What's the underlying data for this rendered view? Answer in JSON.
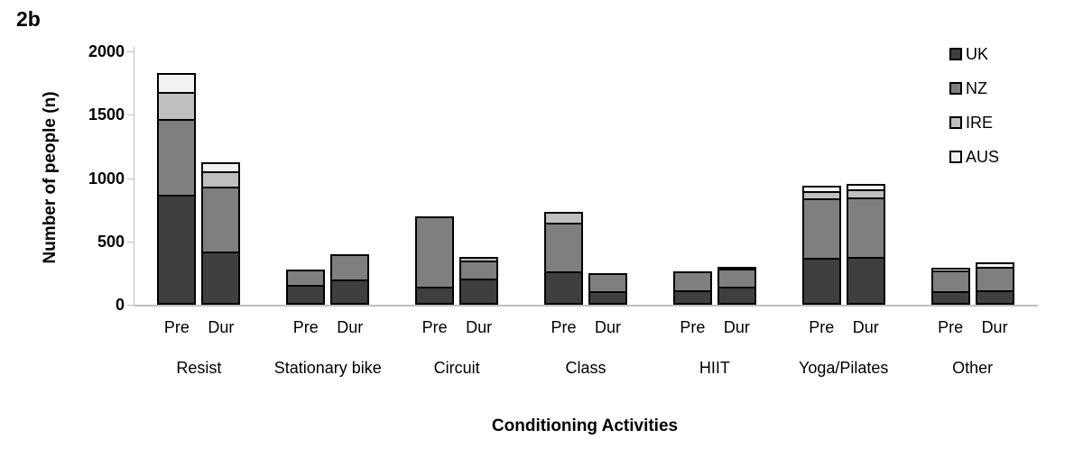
{
  "figure_label": "2b",
  "chart_data": {
    "type": "bar",
    "stacked": true,
    "title": "2b",
    "xlabel": "Conditioning Activities",
    "ylabel": "Number of people (n)",
    "ylim": [
      0,
      2000
    ],
    "yticks": [
      0,
      500,
      1000,
      1500,
      2000
    ],
    "grid": false,
    "axis_color": "#bfbfbf",
    "legend_position": "top-right",
    "bar_pair_labels": [
      "Pre",
      "Dur"
    ],
    "categories": [
      "Resist",
      "Stationary bike",
      "Circuit",
      "Class",
      "HIIT",
      "Yoga/Pilates",
      "Other"
    ],
    "stack_order_bottom_to_top": [
      "UK",
      "NZ",
      "IRE",
      "AUS"
    ],
    "series": [
      {
        "name": "UK",
        "color": "#3f3f3f",
        "values": {
          "Pre": [
            870,
            160,
            140,
            260,
            115,
            370,
            105
          ],
          "Dur": [
            420,
            200,
            205,
            110,
            145,
            375,
            115
          ]
        }
      },
      {
        "name": "NZ",
        "color": "#7f7f7f",
        "values": {
          "Pre": [
            610,
            130,
            570,
            400,
            160,
            485,
            180
          ],
          "Dur": [
            525,
            215,
            160,
            155,
            155,
            485,
            195
          ]
        }
      },
      {
        "name": "IRE",
        "color": "#bfbfbf",
        "values": {
          "Pre": [
            230,
            0,
            0,
            100,
            0,
            70,
            0
          ],
          "Dur": [
            135,
            0,
            40,
            0,
            0,
            80,
            0
          ]
        }
      },
      {
        "name": "AUS",
        "color": "#f2f2f2",
        "values": {
          "Pre": [
            160,
            0,
            0,
            0,
            0,
            55,
            35
          ],
          "Dur": [
            85,
            0,
            0,
            0,
            30,
            55,
            55
          ]
        }
      }
    ],
    "totals": {
      "Pre": [
        1870,
        290,
        710,
        760,
        275,
        980,
        320
      ],
      "Dur": [
        1165,
        415,
        405,
        265,
        330,
        995,
        365
      ]
    }
  }
}
